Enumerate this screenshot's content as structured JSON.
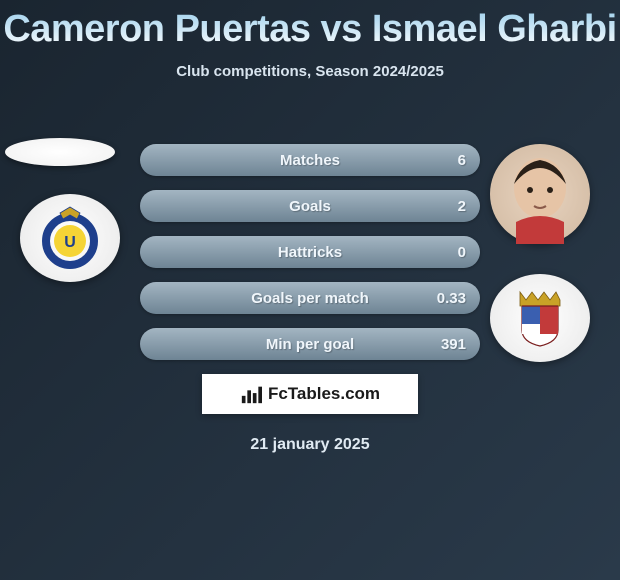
{
  "title": "Cameron Puertas vs Ismael Gharbi",
  "subtitle": "Club competitions, Season 2024/2025",
  "date": "21 january 2025",
  "watermark": "FcTables.com",
  "bar_gradient": {
    "start": "#a3b5c2",
    "end": "#6e8494"
  },
  "stats": [
    {
      "label": "Matches",
      "right_value": "6"
    },
    {
      "label": "Goals",
      "right_value": "2"
    },
    {
      "label": "Hattricks",
      "right_value": "0"
    },
    {
      "label": "Goals per match",
      "right_value": "0.33"
    },
    {
      "label": "Min per goal",
      "right_value": "391"
    }
  ],
  "left_club_colors": {
    "ring": "#1e3f8c",
    "inner": "#f5d436"
  },
  "right_club_colors": {
    "shield_top": "#c23a3a",
    "shield_left": "#3a5fb0",
    "shield_right": "#ffffff",
    "crown": "#c9a227"
  }
}
